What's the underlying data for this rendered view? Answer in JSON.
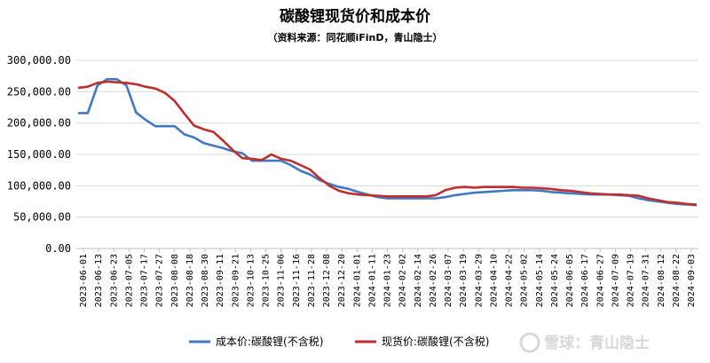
{
  "chart_data": {
    "type": "line",
    "title": "碳酸锂现货价和成本价",
    "subtitle": "（资料来源：同花顺iFinD，青山隐士）",
    "xlabel": "",
    "ylabel": "",
    "ylim": [
      0,
      300000
    ],
    "y_ticks": [
      "300,000.00",
      "250,000.00",
      "200,000.00",
      "150,000.00",
      "100,000.00",
      "50,000.00",
      "0.00"
    ],
    "y_tick_values": [
      300000,
      250000,
      200000,
      150000,
      100000,
      50000,
      0
    ],
    "x_ticks": [
      "2023-06-01",
      "2023-06-13",
      "2023-06-23",
      "2023-07-05",
      "2023-07-17",
      "2023-07-27",
      "2023-08-08",
      "2023-08-18",
      "2023-08-30",
      "2023-09-11",
      "2023-09-21",
      "2023-10-13",
      "2023-10-25",
      "2023-11-06",
      "2023-11-16",
      "2023-11-28",
      "2023-12-08",
      "2023-12-20",
      "2024-01-01",
      "2024-01-11",
      "2024-01-23",
      "2024-02-02",
      "2024-02-14",
      "2024-02-26",
      "2024-03-07",
      "2024-03-19",
      "2024-03-29",
      "2024-04-10",
      "2024-04-22",
      "2024-05-02",
      "2024-05-14",
      "2024-05-24",
      "2024-06-05",
      "2024-06-17",
      "2024-06-27",
      "2024-07-09",
      "2024-07-19",
      "2024-07-31",
      "2024-08-12",
      "2024-08-22",
      "2024-09-03"
    ],
    "grid": "horizontal",
    "legend_position": "bottom",
    "series": [
      {
        "name": "成本价:碳酸锂(不含税)",
        "color": "#3f79c6",
        "values": [
          216000,
          216000,
          260000,
          270000,
          270000,
          260000,
          217000,
          205000,
          195000,
          195000,
          195000,
          182000,
          177000,
          168000,
          164000,
          160000,
          155000,
          152000,
          140000,
          140000,
          140000,
          140000,
          133000,
          124000,
          118000,
          109000,
          103000,
          98000,
          95000,
          90000,
          86000,
          82000,
          80000,
          80000,
          80000,
          80000,
          80000,
          80000,
          82000,
          85000,
          87000,
          89000,
          90000,
          91000,
          92000,
          93000,
          93000,
          93000,
          92000,
          90000,
          89000,
          88000,
          87000,
          86000,
          86000,
          86000,
          85000,
          84000,
          80000,
          77000,
          75000,
          73000,
          71000,
          70000,
          69000
        ]
      },
      {
        "name": "现货价:碳酸锂(不含税)",
        "color": "#c02e2e",
        "values": [
          256000,
          258000,
          264000,
          266000,
          265000,
          264000,
          262000,
          258000,
          255000,
          248000,
          235000,
          215000,
          196000,
          190000,
          186000,
          172000,
          157000,
          144000,
          143000,
          141000,
          150000,
          143000,
          140000,
          133000,
          126000,
          112000,
          100000,
          92000,
          88000,
          86000,
          85000,
          84000,
          83000,
          83000,
          83000,
          83000,
          83000,
          85000,
          93000,
          97000,
          98000,
          97000,
          98000,
          98000,
          98000,
          98000,
          97000,
          97000,
          96000,
          95000,
          93000,
          92000,
          90000,
          88000,
          87000,
          86000,
          86000,
          85000,
          84000,
          80000,
          77000,
          74000,
          73000,
          71000,
          70000
        ]
      }
    ]
  },
  "legend": {
    "cost_label": "成本价:碳酸锂(不含税)",
    "spot_label": "现货价:碳酸锂(不含税)"
  },
  "watermark": {
    "text": "雪球：青山隐士"
  }
}
